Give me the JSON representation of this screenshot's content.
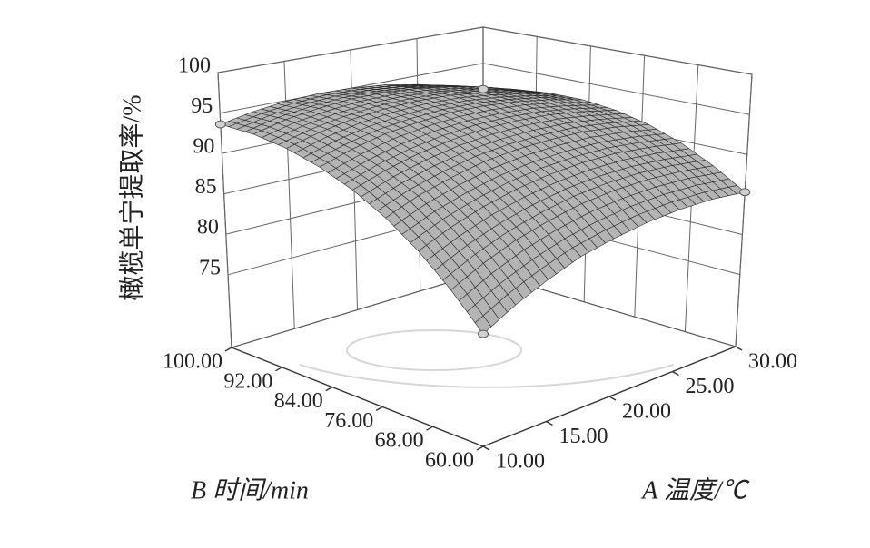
{
  "chart_data": {
    "type": "surface3d",
    "z_label": "橄榄单宁提取率/%",
    "x_label": "A 温度/℃",
    "y_label": "B 时间/min",
    "x": [
      10,
      12.5,
      15,
      17.5,
      20,
      22.5,
      25,
      27.5,
      30
    ],
    "y": [
      60,
      65,
      70,
      75,
      80,
      85,
      90,
      95,
      100
    ],
    "z": [
      [
        77.8,
        79.8,
        81.5,
        83.0,
        84.0,
        84.8,
        85.3,
        85.5,
        85.3
      ],
      [
        81.4,
        83.3,
        84.9,
        86.1,
        87.1,
        87.7,
        88.0,
        88.0,
        87.7
      ],
      [
        84.6,
        86.3,
        87.7,
        88.8,
        89.6,
        90.1,
        90.3,
        90.1,
        89.7
      ],
      [
        87.3,
        88.9,
        90.1,
        91.1,
        91.7,
        92.0,
        92.1,
        91.8,
        91.2
      ],
      [
        89.5,
        90.9,
        92.0,
        92.8,
        93.3,
        93.5,
        93.4,
        92.9,
        92.2
      ],
      [
        91.2,
        92.5,
        93.5,
        94.1,
        94.5,
        94.5,
        94.2,
        93.6,
        92.7
      ],
      [
        92.5,
        93.6,
        94.4,
        94.9,
        95.1,
        95.0,
        94.5,
        93.8,
        92.7
      ],
      [
        93.3,
        94.3,
        94.9,
        95.3,
        95.3,
        95.0,
        94.4,
        93.5,
        92.3
      ],
      [
        93.6,
        94.4,
        94.9,
        95.1,
        95.0,
        94.6,
        93.8,
        92.8,
        91.4
      ]
    ],
    "xlim": [
      10,
      30
    ],
    "ylim": [
      60,
      100
    ],
    "zlim": [
      66,
      100
    ],
    "xticks": [
      {
        "value": 10,
        "label": "10.00"
      },
      {
        "value": 15,
        "label": "15.00"
      },
      {
        "value": 20,
        "label": "20.00"
      },
      {
        "value": 25,
        "label": "25.00"
      },
      {
        "value": 30,
        "label": "30.00"
      }
    ],
    "yticks": [
      {
        "value": 60,
        "label": "60.00"
      },
      {
        "value": 68,
        "label": "68.00"
      },
      {
        "value": 76,
        "label": "76.00"
      },
      {
        "value": 84,
        "label": "84.00"
      },
      {
        "value": 92,
        "label": "92.00"
      },
      {
        "value": 100,
        "label": "100.00"
      }
    ],
    "zticks": [
      75,
      80,
      85,
      90,
      95,
      100
    ],
    "color": "#2b2b2b",
    "grid": true
  }
}
